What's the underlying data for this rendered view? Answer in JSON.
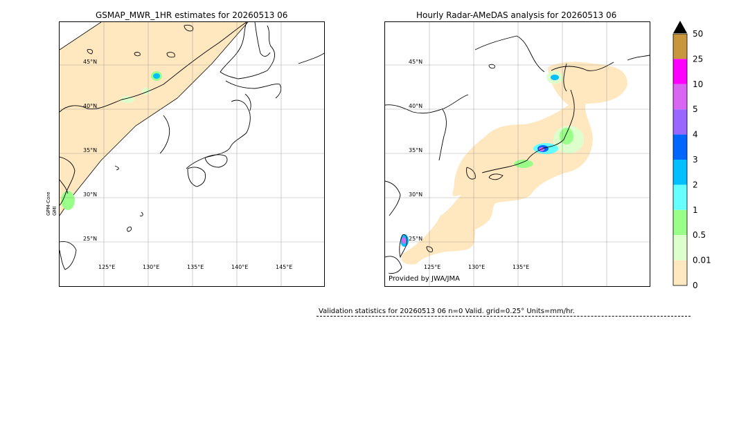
{
  "left_panel": {
    "title": "GSMAP_MWR_1HR estimates for 20260513 06",
    "sensor_label_line1": "GPM-Core",
    "sensor_label_line2": "GMI",
    "lat_labels": [
      "45°N",
      "40°N",
      "35°N",
      "30°N",
      "25°N"
    ],
    "lon_labels": [
      "125°E",
      "130°E",
      "135°E",
      "140°E",
      "145°E"
    ]
  },
  "right_panel": {
    "title": "Hourly Radar-AMeDAS analysis for 20260513 06",
    "lat_labels": [
      "45°N",
      "40°N",
      "35°N",
      "30°N",
      "25°N"
    ],
    "lon_labels": [
      "125°E",
      "130°E",
      "135°E"
    ],
    "credit": "Provided by JWA/JMA"
  },
  "colorbar": {
    "units": "mm/hr",
    "labels": [
      "50",
      "25",
      "10",
      "5",
      "4",
      "3",
      "2",
      "1",
      "0.5",
      "0.01",
      "0"
    ],
    "colors": [
      "#c8963c",
      "#ff00ff",
      "#d966f2",
      "#9966ff",
      "#0066ff",
      "#00bfff",
      "#66ffff",
      "#99ff88",
      "#ddffcc",
      "#ffe8c0"
    ],
    "extend_color": "#000000"
  },
  "stats": {
    "text": "Validation statistics for 20260513 06  n=0 Valid. grid=0.25° Units=mm/hr."
  }
}
